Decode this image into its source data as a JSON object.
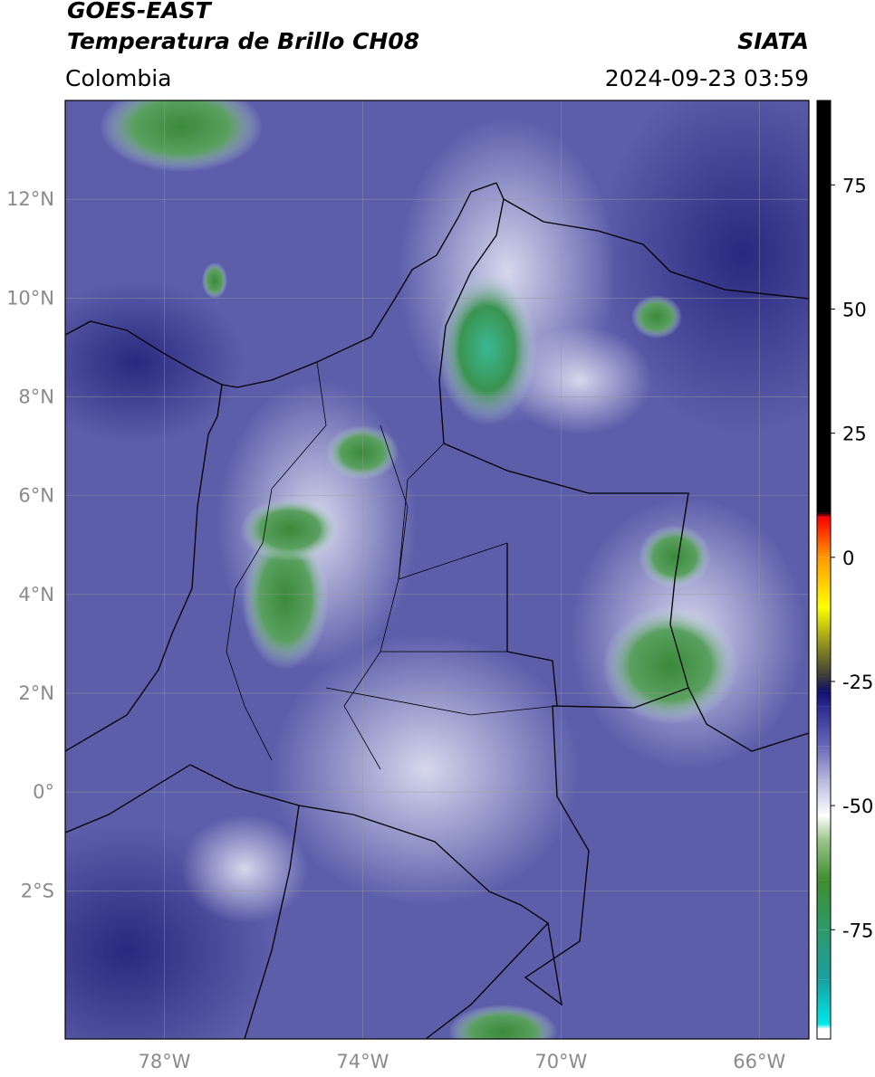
{
  "chart_data": {
    "type": "map",
    "title": "GOES-EAST",
    "subtitle": "Temperatura de Brillo CH08",
    "source": "SIATA",
    "region": "Colombia",
    "datetime": "2024-09-23 03:59",
    "xlim": [
      -80,
      -65
    ],
    "ylim": [
      -5,
      14
    ],
    "xticks": [
      {
        "value": -78,
        "label": "78°W"
      },
      {
        "value": -74,
        "label": "74°W"
      },
      {
        "value": -70,
        "label": "70°W"
      },
      {
        "value": -66,
        "label": "66°W"
      }
    ],
    "yticks": [
      {
        "value": 12,
        "label": "12°N"
      },
      {
        "value": 10,
        "label": "10°N"
      },
      {
        "value": 8,
        "label": "8°N"
      },
      {
        "value": 6,
        "label": "6°N"
      },
      {
        "value": 4,
        "label": "4°N"
      },
      {
        "value": 2,
        "label": "2°N"
      },
      {
        "value": 0,
        "label": "0°"
      },
      {
        "value": -2,
        "label": "2°S"
      }
    ],
    "grid": true,
    "colorbar": {
      "lim": [
        -97,
        92
      ],
      "ticks": [
        75,
        50,
        25,
        0,
        -25,
        -50,
        -75
      ],
      "stops": [
        {
          "value": -97,
          "color": "#ffffff"
        },
        {
          "value": -95,
          "color": "#ffffff"
        },
        {
          "value": -94,
          "color": "#00e8e8"
        },
        {
          "value": -85,
          "color": "#1aa0a0"
        },
        {
          "value": -75,
          "color": "#2e9a6a"
        },
        {
          "value": -65,
          "color": "#3e8e2e"
        },
        {
          "value": -57,
          "color": "#9ac48a"
        },
        {
          "value": -52,
          "color": "#ffffff"
        },
        {
          "value": -45,
          "color": "#b8b8e0"
        },
        {
          "value": -38,
          "color": "#6868b8"
        },
        {
          "value": -30,
          "color": "#2a2a90"
        },
        {
          "value": -27,
          "color": "#10106a"
        },
        {
          "value": -24,
          "color": "#3a3a3a"
        },
        {
          "value": -18,
          "color": "#8a8a20"
        },
        {
          "value": -10,
          "color": "#ffff00"
        },
        {
          "value": 0,
          "color": "#ff9900"
        },
        {
          "value": 8,
          "color": "#ff0000"
        },
        {
          "value": 9,
          "color": "#000000"
        },
        {
          "value": 92,
          "color": "#000000"
        }
      ]
    }
  }
}
